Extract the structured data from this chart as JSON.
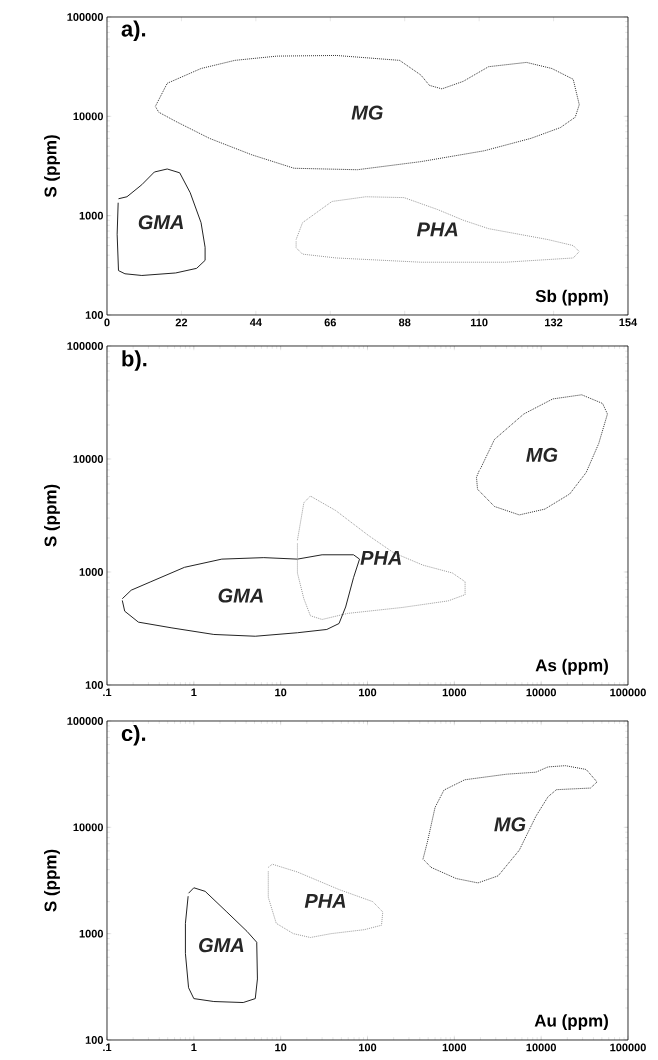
{
  "chart_data": [
    {
      "type": "line",
      "title": "a).",
      "xlabel": "Sb  (ppm)",
      "ylabel": "S (ppm)",
      "log": "y",
      "grid": false,
      "marker": "none",
      "xlim": [
        0,
        154
      ],
      "xticks": [
        0,
        22,
        44,
        66,
        88,
        110,
        132,
        154
      ],
      "ylim": [
        100,
        100000
      ],
      "yticks": [
        100,
        1000,
        10000,
        100000
      ],
      "series": [
        {
          "name": "MG",
          "color": "#333333",
          "line_style": "dotted",
          "x": [
            14.3,
            17.8,
            27.8,
            37.8,
            50.3,
            67.8,
            86.5,
            92.8,
            95.3,
            99,
            105.3,
            112.8,
            124,
            131.5,
            137.8,
            139.6,
            138.4,
            134,
            125.3,
            111.5,
            92.8,
            74,
            55.3,
            42.8,
            30.3,
            20.3,
            15.3,
            14.4
          ],
          "values": [
            12600,
            21500,
            30300,
            36600,
            40400,
            41000,
            36600,
            26000,
            20500,
            18900,
            22500,
            31600,
            34900,
            30300,
            23600,
            13100,
            9800,
            7700,
            6000,
            4500,
            3500,
            2900,
            3000,
            4100,
            6000,
            8900,
            11000,
            12400
          ]
        },
        {
          "name": "GMA",
          "color": "#222222",
          "line_style": "solid",
          "x": [
            3.4,
            5.9,
            10.3,
            14,
            17.8,
            21.5,
            24.6,
            27.8,
            29,
            29,
            26.5,
            20.3,
            10.3,
            5.3,
            3.4,
            3,
            3.3
          ],
          "values": [
            1480,
            1550,
            2050,
            2750,
            2950,
            2700,
            1700,
            850,
            480,
            355,
            295,
            265,
            250,
            260,
            280,
            650,
            1350
          ]
        },
        {
          "name": "PHA",
          "color": "#999999",
          "line_style": "dotted",
          "x": [
            55.9,
            57.8,
            66.5,
            76.5,
            87.8,
            97.8,
            105.3,
            112.8,
            130.3,
            137.8,
            139.6,
            137.8,
            117.8,
            92.8,
            67.8,
            57.8,
            55.9,
            55.9
          ],
          "values": [
            575,
            850,
            1390,
            1550,
            1520,
            1150,
            900,
            740,
            575,
            500,
            435,
            375,
            340,
            340,
            375,
            410,
            475,
            560
          ]
        }
      ]
    },
    {
      "type": "line",
      "title": "b).",
      "xlabel": "As (ppm)",
      "ylabel": "S (ppm)",
      "log": "xy",
      "grid": false,
      "marker": "none",
      "xlim": [
        0.1,
        100000
      ],
      "xticks": [
        {
          "value": 0.1,
          "label": ".1"
        },
        1,
        10,
        100,
        1000,
        10000,
        100000
      ],
      "ylim": [
        100,
        100000
      ],
      "yticks": [
        100,
        1000,
        10000,
        100000
      ],
      "series": [
        {
          "name": "MG",
          "color": "#333333",
          "line_style": "dotted",
          "x": [
            2000,
            2900,
            6300,
            13600,
            29300,
            51000,
            58000,
            46000,
            33000,
            21300,
            11000,
            5600,
            2900,
            1850,
            1800,
            1950
          ],
          "values": [
            8200,
            14900,
            25000,
            34000,
            37000,
            31000,
            25000,
            13700,
            7600,
            4900,
            3600,
            3200,
            3800,
            5400,
            6900,
            8000
          ]
        },
        {
          "name": "GMA",
          "color": "#222222",
          "line_style": "solid",
          "x": [
            0.15,
            0.19,
            0.32,
            0.78,
            2.1,
            6.4,
            15.6,
            30,
            69,
            81,
            69,
            56,
            47,
            34,
            15.6,
            5.1,
            1.7,
            0.56,
            0.23,
            0.16,
            0.15
          ],
          "values": [
            580,
            690,
            820,
            1100,
            1300,
            1340,
            1300,
            1420,
            1420,
            1300,
            890,
            490,
            350,
            310,
            290,
            270,
            280,
            320,
            360,
            450,
            560
          ]
        },
        {
          "name": "PHA",
          "color": "#999999",
          "line_style": "dotted",
          "x": [
            15.6,
            18.5,
            22,
            43,
            103,
            200,
            435,
            950,
            1330,
            1330,
            850,
            250,
            59,
            30,
            22,
            18.5,
            15.6,
            15.6
          ],
          "values": [
            1910,
            4100,
            4700,
            3500,
            2100,
            1480,
            1150,
            980,
            820,
            630,
            555,
            485,
            430,
            380,
            410,
            580,
            980,
            1800
          ]
        }
      ]
    },
    {
      "type": "line",
      "title": "c).",
      "xlabel": "Au (ppm)",
      "ylabel": "S (ppm)",
      "log": "xy",
      "grid": false,
      "marker": "none",
      "xlim": [
        0.1,
        100000
      ],
      "xticks": [
        {
          "value": 0.1,
          "label": ".1"
        },
        1,
        10,
        100,
        1000,
        10000,
        100000
      ],
      "ylim": [
        100,
        100000
      ],
      "yticks": [
        100,
        1000,
        10000,
        100000
      ],
      "series": [
        {
          "name": "MG",
          "color": "#333333",
          "line_style": "dotted",
          "x": [
            435,
            490,
            600,
            760,
            1320,
            4000,
            8700,
            12000,
            19000,
            33000,
            44000,
            37000,
            15000,
            12000,
            8700,
            5600,
            3200,
            1870,
            1050,
            540,
            450
          ],
          "values": [
            5000,
            7300,
            15400,
            22400,
            28000,
            31600,
            33000,
            37000,
            38000,
            35000,
            26700,
            23400,
            22600,
            19400,
            12700,
            6100,
            3500,
            3000,
            3300,
            4200,
            4900
          ]
        },
        {
          "name": "GMA",
          "color": "#222222",
          "line_style": "solid",
          "x": [
            0.87,
            1.0,
            1.35,
            2.4,
            4.1,
            5.3,
            5.4,
            5.1,
            3.7,
            1.7,
            1.0,
            0.87,
            0.8,
            0.8,
            0.86
          ],
          "values": [
            2400,
            2700,
            2500,
            1600,
            1050,
            830,
            375,
            245,
            225,
            230,
            245,
            310,
            650,
            1250,
            2250
          ]
        },
        {
          "name": "PHA",
          "color": "#999999",
          "line_style": "dotted",
          "x": [
            7.2,
            8.0,
            15.6,
            47,
            115,
            150,
            145,
            92,
            38,
            22,
            14,
            8.9,
            7.2,
            7.2
          ],
          "values": [
            4200,
            4500,
            3800,
            2600,
            2000,
            1600,
            1200,
            1090,
            1000,
            920,
            1000,
            1250,
            2200,
            3900
          ]
        }
      ]
    }
  ]
}
